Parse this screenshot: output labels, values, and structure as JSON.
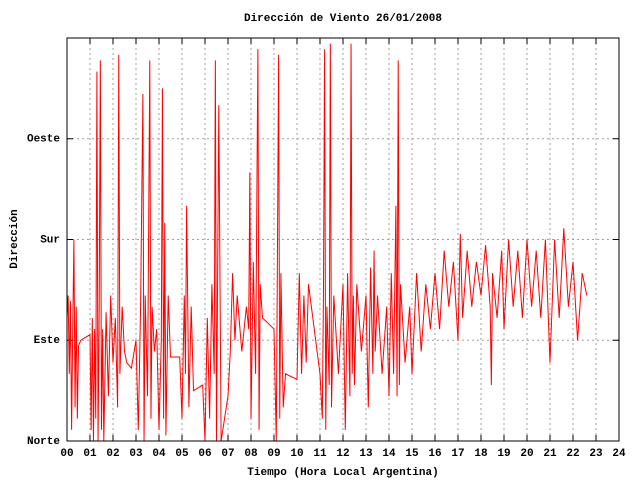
{
  "chart_data": {
    "type": "line",
    "title": "Dirección de Viento 26/01/2008",
    "xlabel": "Tiempo (Hora Local Argentina)",
    "ylabel": "Dirección",
    "x": [
      0,
      0.05,
      0.1,
      0.15,
      0.2,
      0.25,
      0.3,
      0.35,
      0.4,
      0.45,
      0.5,
      0.6,
      1.0,
      1.05,
      1.1,
      1.15,
      1.2,
      1.25,
      1.3,
      1.35,
      1.4,
      1.45,
      1.5,
      1.55,
      1.6,
      1.7,
      1.8,
      1.9,
      2.0,
      2.1,
      2.2,
      2.25,
      2.3,
      2.4,
      2.5,
      2.6,
      2.8,
      3.0,
      3.1,
      3.2,
      3.3,
      3.35,
      3.4,
      3.5,
      3.6,
      3.65,
      3.7,
      3.8,
      3.9,
      4.0,
      4.1,
      4.15,
      4.2,
      4.25,
      4.3,
      4.4,
      4.5,
      4.9,
      5.0,
      5.1,
      5.15,
      5.2,
      5.3,
      5.4,
      5.5,
      5.9,
      6.0,
      6.1,
      6.2,
      6.3,
      6.4,
      6.45,
      6.5,
      6.6,
      6.7,
      7.0,
      7.1,
      7.2,
      7.3,
      7.4,
      7.6,
      7.8,
      7.9,
      7.95,
      8.0,
      8.1,
      8.2,
      8.3,
      8.35,
      8.4,
      8.5,
      9.0,
      9.1,
      9.15,
      9.2,
      9.25,
      9.3,
      9.4,
      9.5,
      10.0,
      10.1,
      10.2,
      10.3,
      10.4,
      10.5,
      11.0,
      11.1,
      11.15,
      11.2,
      11.25,
      11.3,
      11.4,
      11.45,
      11.5,
      11.6,
      11.8,
      12.0,
      12.1,
      12.2,
      12.3,
      12.35,
      12.4,
      12.45,
      12.5,
      12.6,
      12.8,
      13.0,
      13.1,
      13.2,
      13.3,
      13.35,
      13.4,
      13.5,
      13.7,
      13.9,
      14.0,
      14.1,
      14.2,
      14.3,
      14.35,
      14.4,
      14.45,
      14.5,
      14.7,
      14.9,
      15.0,
      15.2,
      15.4,
      15.6,
      15.8,
      16.0,
      16.2,
      16.4,
      16.6,
      16.8,
      17.0,
      17.1,
      17.2,
      17.4,
      17.6,
      17.8,
      18.0,
      18.2,
      18.4,
      18.45,
      18.5,
      18.7,
      18.9,
      19.0,
      19.2,
      19.4,
      19.6,
      19.8,
      20.0,
      20.2,
      20.4,
      20.6,
      20.8,
      21.0,
      21.2,
      21.4,
      21.6,
      21.8,
      22.0,
      22.2,
      22.4,
      22.6
    ],
    "series": [
      {
        "color": "#ff0000",
        "values": [
          110,
          130,
          60,
          125,
          10,
          100,
          180,
          30,
          120,
          20,
          85,
          90,
          95,
          10,
          110,
          0,
          100,
          20,
          330,
          0,
          120,
          340,
          10,
          100,
          0,
          115,
          40,
          130,
          70,
          110,
          30,
          345,
          60,
          120,
          80,
          70,
          65,
          90,
          10,
          120,
          310,
          0,
          130,
          40,
          340,
          20,
          120,
          80,
          100,
          10,
          90,
          315,
          20,
          195,
          5,
          130,
          75,
          75,
          20,
          130,
          60,
          210,
          30,
          120,
          45,
          50,
          0,
          110,
          20,
          140,
          60,
          340,
          0,
          300,
          0,
          40,
          80,
          150,
          90,
          130,
          80,
          120,
          100,
          240,
          20,
          160,
          60,
          350,
          10,
          140,
          110,
          100,
          0,
          170,
          345,
          20,
          150,
          30,
          60,
          55,
          150,
          60,
          130,
          70,
          140,
          60,
          20,
          130,
          350,
          10,
          120,
          50,
          355,
          30,
          130,
          60,
          140,
          10,
          150,
          40,
          355,
          60,
          130,
          50,
          140,
          80,
          130,
          30,
          155,
          60,
          170,
          80,
          130,
          60,
          120,
          40,
          150,
          60,
          210,
          40,
          340,
          50,
          140,
          70,
          120,
          60,
          150,
          80,
          140,
          100,
          150,
          100,
          170,
          120,
          160,
          90,
          185,
          110,
          170,
          120,
          160,
          130,
          175,
          120,
          50,
          150,
          110,
          170,
          100,
          180,
          120,
          170,
          110,
          180,
          120,
          170,
          110,
          180,
          70,
          180,
          110,
          190,
          120,
          160,
          90,
          150,
          130
        ]
      }
    ],
    "xlim": [
      0,
      24
    ],
    "xticks": [
      {
        "value": 0,
        "label": "00"
      },
      {
        "value": 1,
        "label": "01"
      },
      {
        "value": 2,
        "label": "02"
      },
      {
        "value": 3,
        "label": "03"
      },
      {
        "value": 4,
        "label": "04"
      },
      {
        "value": 5,
        "label": "05"
      },
      {
        "value": 6,
        "label": "06"
      },
      {
        "value": 7,
        "label": "07"
      },
      {
        "value": 8,
        "label": "08"
      },
      {
        "value": 9,
        "label": "09"
      },
      10,
      11,
      12,
      13,
      14,
      15,
      16,
      17,
      18,
      19,
      20,
      21,
      22,
      23,
      24
    ],
    "ylim": [
      0,
      360
    ],
    "yticks": [
      {
        "value": 0,
        "label": "Norte"
      },
      {
        "value": 90,
        "label": "Este"
      },
      {
        "value": 180,
        "label": "Sur"
      },
      {
        "value": 270,
        "label": "Oeste"
      }
    ],
    "grid": true
  }
}
